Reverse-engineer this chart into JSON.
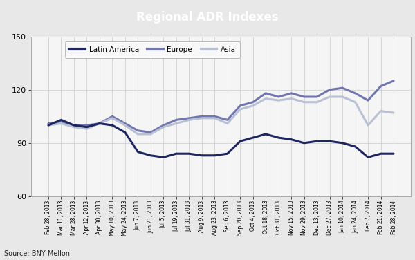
{
  "title": "Regional ADR Indexes",
  "title_bg_color": "#32336b",
  "title_text_color": "#ffffff",
  "source_text": "Source: BNY Mellon",
  "ylim": [
    60,
    150
  ],
  "yticks": [
    60,
    90,
    120,
    150
  ],
  "outer_bg_color": "#e8e8e8",
  "plot_bg_color": "#f5f5f5",
  "grid_color": "#d0d0d0",
  "x_labels": [
    "Feb 28, 2013",
    "Mar 11, 2013",
    "Mar 28, 2013",
    "Apr 12, 2013",
    "Apr 30, 2013",
    "May 10, 2013",
    "May 24, 2013",
    "Jun 7, 2013",
    "Jun 21, 2013",
    "Jul 5, 2013",
    "Jul 19, 2013",
    "Jul 31, 2013",
    "Aug 9, 2013",
    "Aug 23, 2013",
    "Sep 6, 2013",
    "Sep 20, 2013",
    "Oct 4, 2013",
    "Oct 18, 2013",
    "Oct 31, 2013",
    "Nov 15, 2013",
    "Nov 29, 2013",
    "Dec 13, 2013",
    "Dec 27, 2013",
    "Jan 10, 2014",
    "Jan 24, 2014",
    "Feb 7, 2014",
    "Feb 21, 2014",
    "Feb 28, 2014"
  ],
  "latin_america": [
    100,
    103,
    100,
    99,
    101,
    100,
    96,
    85,
    83,
    82,
    84,
    84,
    83,
    83,
    84,
    91,
    93,
    95,
    93,
    92,
    90,
    91,
    91,
    90,
    88,
    82,
    84,
    84
  ],
  "europe": [
    101,
    102,
    100,
    100,
    101,
    105,
    101,
    97,
    96,
    100,
    103,
    104,
    105,
    105,
    103,
    111,
    113,
    118,
    116,
    118,
    116,
    116,
    120,
    121,
    118,
    114,
    122,
    125
  ],
  "asia": [
    100,
    101,
    99,
    98,
    101,
    104,
    100,
    95,
    95,
    99,
    101,
    103,
    104,
    104,
    101,
    109,
    111,
    115,
    114,
    115,
    113,
    113,
    116,
    116,
    113,
    100,
    108,
    107
  ],
  "latin_america_color": "#1e2660",
  "europe_color": "#7276b0",
  "asia_color": "#b8c0d4",
  "line_width": 2.2,
  "legend_entries": [
    "Latin America",
    "Europe",
    "Asia"
  ]
}
